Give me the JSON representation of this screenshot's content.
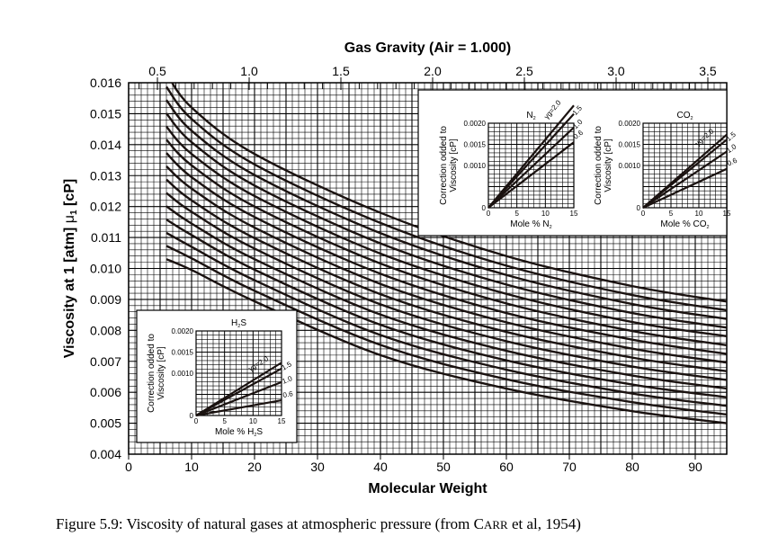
{
  "caption": {
    "prefix": "Figure 5.9:  Viscosity of natural gases at atmospheric pressure (from ",
    "author_initial": "C",
    "author_rest": "ARR",
    "suffix": " et al, 1954)"
  },
  "chart_data": [
    {
      "type": "line",
      "title": "Gas Gravity  (Air = 1.000)",
      "xlabel": "Molecular Weight",
      "ylabel": "Viscosity at 1 [atm]",
      "ylabel_symbol": "μ",
      "ylabel_subscript": "1",
      "ylabel_unit": "[cP]",
      "xlim": [
        0,
        95
      ],
      "ylim": [
        0.004,
        0.016
      ],
      "x_ticks": [
        "0",
        "10",
        "20",
        "30",
        "40",
        "50",
        "60",
        "70",
        "80",
        "90"
      ],
      "y_ticks": [
        "0.004",
        "0.005",
        "0.006",
        "0.007",
        "0.008",
        "0.009",
        "0.010",
        "0.011",
        "0.012",
        "0.013",
        "0.014",
        "0.015",
        "0.016"
      ],
      "top_axis": {
        "label": "Gas Gravity  (Air = 1.000)",
        "range": [
          0.343,
          3.603
        ],
        "ticks": [
          "0.5",
          "1.0",
          "1.5",
          "2.0",
          "2.5",
          "3.0",
          "3.5"
        ]
      },
      "grid": true,
      "x": [
        6,
        10,
        20,
        40,
        60,
        80,
        95
      ],
      "series": [
        {
          "values": [
            0.0163,
            0.0152,
            0.0137,
            0.0118,
            0.0104,
            0.00943,
            0.00893
          ]
        },
        {
          "values": [
            0.01587,
            0.01483,
            0.01336,
            0.01147,
            0.01009,
            0.00914,
            0.00865
          ]
        },
        {
          "values": [
            0.01544,
            0.01445,
            0.01302,
            0.01114,
            0.00979,
            0.00885,
            0.00837
          ]
        },
        {
          "values": [
            0.01501,
            0.01408,
            0.01268,
            0.01081,
            0.00948,
            0.00856,
            0.00809
          ]
        },
        {
          "values": [
            0.01458,
            0.0137,
            0.01234,
            0.01048,
            0.00918,
            0.00827,
            0.00781
          ]
        },
        {
          "values": [
            0.01416,
            0.01333,
            0.012,
            0.01016,
            0.00887,
            0.00798,
            0.00752
          ]
        },
        {
          "values": [
            0.01373,
            0.01295,
            0.01166,
            0.00983,
            0.00856,
            0.0077,
            0.00724
          ]
        },
        {
          "values": [
            0.0133,
            0.01258,
            0.01132,
            0.0095,
            0.00826,
            0.00741,
            0.00696
          ]
        },
        {
          "values": [
            0.01287,
            0.0122,
            0.01098,
            0.00917,
            0.00795,
            0.00712,
            0.00668
          ]
        },
        {
          "values": [
            0.01244,
            0.01183,
            0.01064,
            0.00884,
            0.00765,
            0.00683,
            0.0064
          ]
        },
        {
          "values": [
            0.01201,
            0.01145,
            0.0103,
            0.00851,
            0.00734,
            0.00654,
            0.00612
          ]
        },
        {
          "values": [
            0.01158,
            0.01108,
            0.00996,
            0.00818,
            0.00703,
            0.00625,
            0.00584
          ]
        },
        {
          "values": [
            0.01115,
            0.0107,
            0.00962,
            0.00785,
            0.00673,
            0.00596,
            0.00556
          ]
        },
        {
          "values": [
            0.01073,
            0.01033,
            0.00928,
            0.00753,
            0.00642,
            0.00568,
            0.00528
          ]
        },
        {
          "values": [
            0.0103,
            0.00995,
            0.00894,
            0.0072,
            0.00612,
            0.00539,
            0.005
          ]
        }
      ]
    },
    {
      "type": "line",
      "title": "N",
      "title_sub": "2",
      "xlabel": "Mole %  N",
      "xlabel_sub": "2",
      "ylabel": [
        "Correction odded to",
        "Viscosity  [cP]"
      ],
      "xlim": [
        0,
        15
      ],
      "ylim": [
        0,
        0.002
      ],
      "x_ticks": [
        "0",
        "5",
        "10",
        "15"
      ],
      "y_ticks": [
        "0",
        "0.0010",
        "0.0015",
        "0.0020"
      ],
      "series": [
        {
          "name": "γg=2.0",
          "x": [
            0,
            15
          ],
          "values": [
            0,
            0.00242
          ]
        },
        {
          "name": "1.5",
          "x": [
            0,
            15
          ],
          "values": [
            0,
            0.00222
          ]
        },
        {
          "name": "1.0",
          "x": [
            0,
            15
          ],
          "values": [
            0,
            0.0019
          ]
        },
        {
          "name": "0.6",
          "x": [
            0,
            15
          ],
          "values": [
            0,
            0.00155
          ]
        }
      ]
    },
    {
      "type": "line",
      "title": "CO",
      "title_sub": "2",
      "xlabel": "Mole %  CO",
      "xlabel_sub": "2",
      "ylabel": [
        "Correction odded to",
        "Viscosity  [cP]"
      ],
      "xlim": [
        0,
        15
      ],
      "ylim": [
        0,
        0.002
      ],
      "x_ticks": [
        "0",
        "5",
        "10",
        "15"
      ],
      "y_ticks": [
        "0",
        "0.0010",
        "0.0015",
        "0.0020"
      ],
      "series": [
        {
          "name": "γg=2.0",
          "x": [
            0,
            15
          ],
          "values": [
            0,
            0.00173
          ]
        },
        {
          "name": "1.5",
          "x": [
            0,
            15
          ],
          "values": [
            0,
            0.00161
          ]
        },
        {
          "name": "1.0",
          "x": [
            0,
            15
          ],
          "values": [
            0,
            0.00133
          ]
        },
        {
          "name": "0.6",
          "x": [
            0,
            15
          ],
          "values": [
            0,
            0.00092
          ]
        }
      ]
    },
    {
      "type": "line",
      "title": "H",
      "title_sub": "2",
      "title_tail": "S",
      "xlabel": "Mole %  H",
      "xlabel_sub": "2",
      "xlabel_tail": "S",
      "ylabel": [
        "Correction odded to",
        "Viscosity  [cP]"
      ],
      "xlim": [
        0,
        15
      ],
      "ylim": [
        0,
        0.002
      ],
      "x_ticks": [
        "0",
        "5",
        "10",
        "15"
      ],
      "y_ticks": [
        "0",
        "0.0010",
        "0.0015",
        "0.0020"
      ],
      "series": [
        {
          "name": "γg=2.0",
          "x": [
            0,
            15
          ],
          "values": [
            0,
            0.00125
          ]
        },
        {
          "name": "1.5",
          "x": [
            0,
            15
          ],
          "values": [
            0,
            0.00111
          ]
        },
        {
          "name": "1.0",
          "x": [
            0,
            15
          ],
          "values": [
            0,
            0.00079
          ]
        },
        {
          "name": "0.6",
          "x": [
            0,
            15
          ],
          "values": [
            0,
            0.00036
          ]
        }
      ]
    }
  ]
}
